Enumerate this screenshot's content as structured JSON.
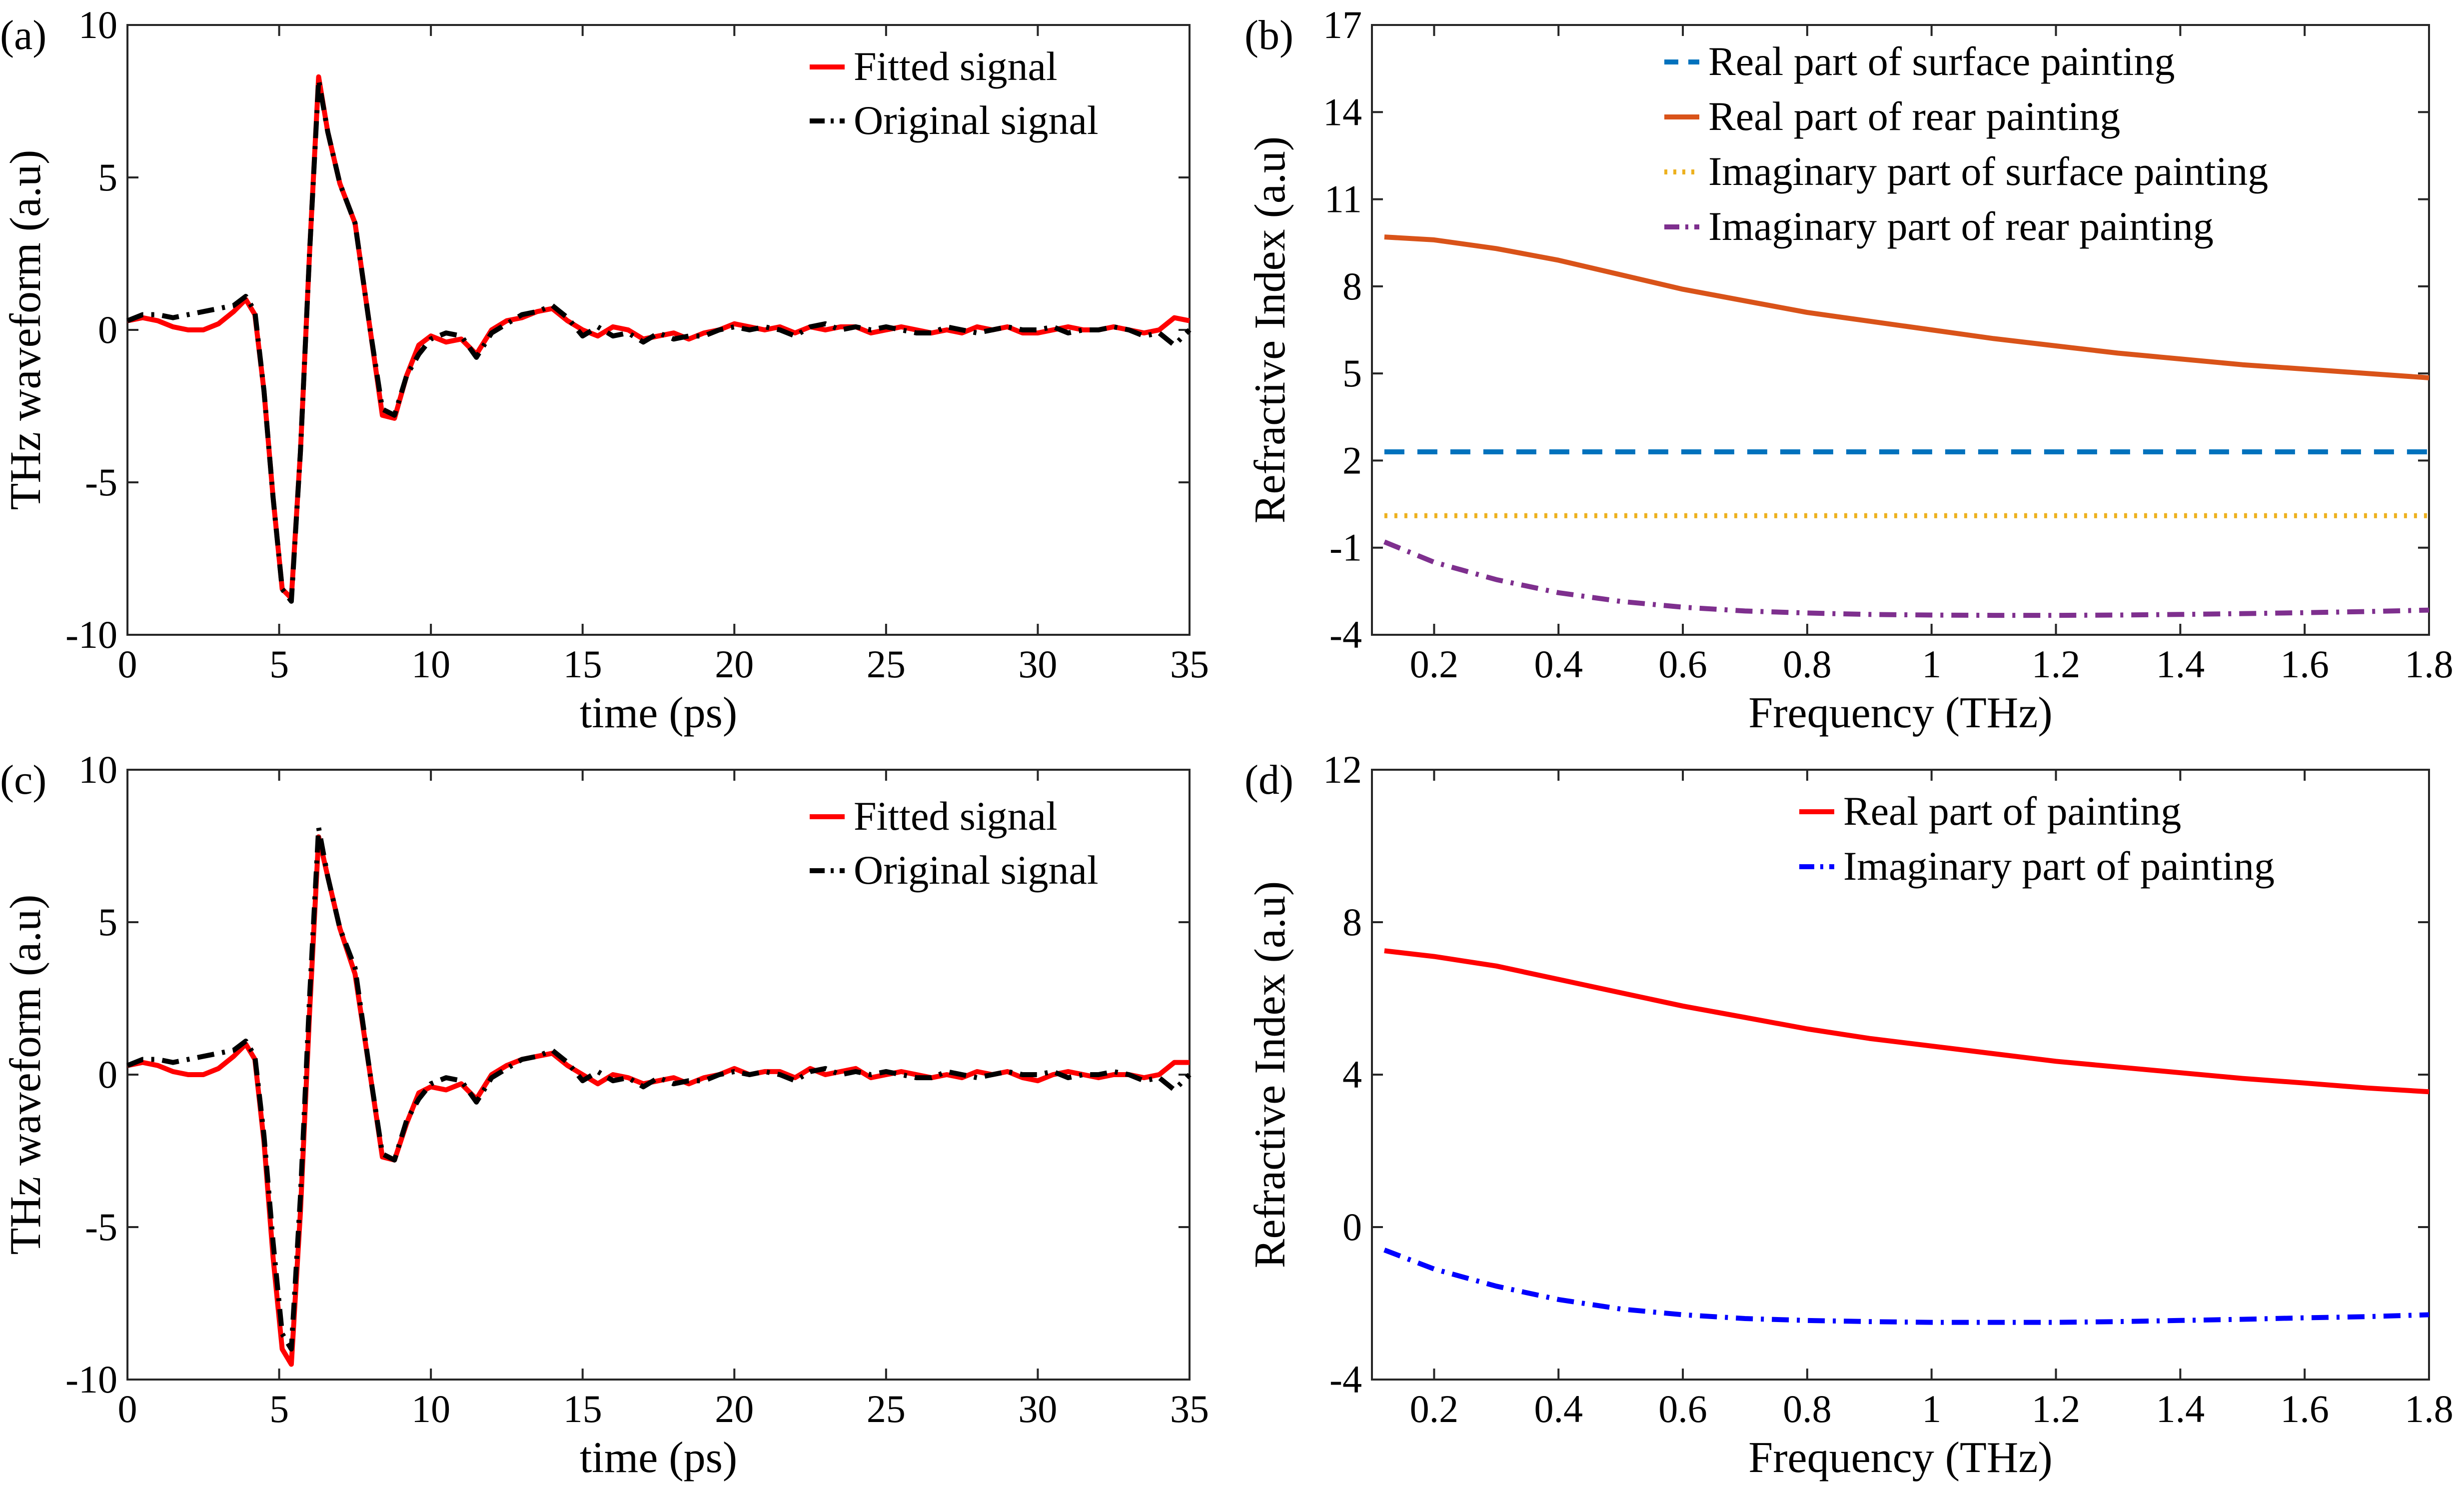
{
  "chart_data": [
    {
      "id": "a",
      "type": "line",
      "panel_label": "(a)",
      "xlabel": "time (ps)",
      "ylabel": "THz waveform (a.u)",
      "xlim": [
        0,
        35
      ],
      "ylim": [
        -10,
        10
      ],
      "xticks": [
        0,
        5,
        10,
        15,
        20,
        25,
        30,
        35
      ],
      "xtick_labels": [
        "0",
        "5",
        "10",
        "15",
        "20",
        "25",
        "30",
        "35"
      ],
      "yticks": [
        -10,
        -5,
        0,
        5,
        10
      ],
      "ytick_labels": [
        "-10",
        "-5",
        "0",
        "5",
        "10"
      ],
      "legend_position": "top-right",
      "x": [
        0,
        0.5,
        1,
        1.5,
        2,
        2.5,
        3,
        3.5,
        3.9,
        4.2,
        4.5,
        4.8,
        5.1,
        5.4,
        5.7,
        6.0,
        6.3,
        6.6,
        7.0,
        7.5,
        8.0,
        8.4,
        8.8,
        9.2,
        9.6,
        10.0,
        10.5,
        11.0,
        11.5,
        12.0,
        12.5,
        13.0,
        13.5,
        14.0,
        14.5,
        15.0,
        15.5,
        16.0,
        16.5,
        17.0,
        17.5,
        18.0,
        18.5,
        19.0,
        19.5,
        20.0,
        20.5,
        21.0,
        21.5,
        22.0,
        22.5,
        23.0,
        23.5,
        24.0,
        24.5,
        25.0,
        25.5,
        26.0,
        26.5,
        27.0,
        27.5,
        28.0,
        28.5,
        29.0,
        29.5,
        30.0,
        30.5,
        31.0,
        31.5,
        32.0,
        32.5,
        33.0,
        33.5,
        34.0,
        34.5,
        35.0
      ],
      "series": [
        {
          "name": "Fitted signal",
          "color": "#ff0000",
          "dash": "solid",
          "values": [
            0.3,
            0.4,
            0.3,
            0.1,
            0.0,
            0.0,
            0.2,
            0.6,
            1.0,
            0.5,
            -2.0,
            -5.5,
            -8.5,
            -8.8,
            -4.0,
            2.5,
            8.3,
            6.5,
            4.8,
            3.5,
            0.0,
            -2.8,
            -2.9,
            -1.5,
            -0.5,
            -0.2,
            -0.4,
            -0.3,
            -0.8,
            0.0,
            0.3,
            0.4,
            0.6,
            0.7,
            0.3,
            0.0,
            -0.2,
            0.1,
            0.0,
            -0.3,
            -0.2,
            -0.1,
            -0.3,
            -0.1,
            0.0,
            0.2,
            0.1,
            0.0,
            0.1,
            -0.1,
            0.1,
            0.0,
            0.1,
            0.1,
            -0.1,
            0.0,
            0.1,
            0.0,
            -0.1,
            0.0,
            -0.1,
            0.1,
            0.0,
            0.1,
            -0.1,
            -0.1,
            0.0,
            0.1,
            0.0,
            0.0,
            0.1,
            0.0,
            -0.1,
            0.0,
            0.4,
            0.3
          ]
        },
        {
          "name": "Original signal",
          "color": "#000000",
          "dash": "dashdot",
          "values": [
            0.3,
            0.5,
            0.5,
            0.4,
            0.5,
            0.6,
            0.7,
            0.8,
            1.1,
            0.6,
            -2.0,
            -5.5,
            -8.5,
            -8.9,
            -4.0,
            2.5,
            8.2,
            6.5,
            4.8,
            3.5,
            0.0,
            -2.6,
            -2.8,
            -1.5,
            -0.8,
            -0.3,
            -0.1,
            -0.2,
            -0.9,
            -0.1,
            0.2,
            0.5,
            0.6,
            0.8,
            0.4,
            -0.2,
            0.1,
            -0.2,
            -0.1,
            -0.4,
            -0.1,
            -0.3,
            -0.2,
            -0.2,
            0.0,
            0.1,
            0.0,
            0.1,
            0.0,
            -0.2,
            0.1,
            0.2,
            0.0,
            0.1,
            0.0,
            0.1,
            0.0,
            -0.1,
            -0.1,
            0.1,
            0.0,
            -0.1,
            0.0,
            0.1,
            0.0,
            0.0,
            0.1,
            -0.1,
            0.0,
            0.0,
            0.1,
            0.0,
            -0.2,
            -0.1,
            -0.5,
            0.0
          ]
        }
      ]
    },
    {
      "id": "b",
      "type": "line",
      "panel_label": "(b)",
      "xlabel": "Frequency (THz)",
      "ylabel": "Refractive Index (a.u)",
      "xlim": [
        0.1,
        1.8
      ],
      "ylim": [
        -4,
        17
      ],
      "xticks": [
        0.2,
        0.4,
        0.6,
        0.8,
        1.0,
        1.2,
        1.4,
        1.6,
        1.8
      ],
      "xtick_labels": [
        "0.2",
        "0.4",
        "0.6",
        "0.8",
        "1",
        "1.2",
        "1.4",
        "1.6",
        "1.8"
      ],
      "yticks": [
        -4,
        -1,
        2,
        5,
        8,
        11,
        14,
        17
      ],
      "ytick_labels": [
        "-4",
        "-1",
        "2",
        "5",
        "8",
        "11",
        "14",
        "17"
      ],
      "legend_position": "top-right",
      "x": [
        0.12,
        0.2,
        0.3,
        0.4,
        0.5,
        0.6,
        0.7,
        0.8,
        0.9,
        1.0,
        1.1,
        1.2,
        1.3,
        1.4,
        1.5,
        1.6,
        1.7,
        1.8
      ],
      "series": [
        {
          "name": "Real part of surface painting",
          "color": "#0072bd",
          "dash": "dashed",
          "values": [
            2.3,
            2.3,
            2.3,
            2.3,
            2.3,
            2.3,
            2.3,
            2.3,
            2.3,
            2.3,
            2.3,
            2.3,
            2.3,
            2.3,
            2.3,
            2.3,
            2.3,
            2.3
          ]
        },
        {
          "name": "Real part of rear painting",
          "color": "#d95319",
          "dash": "solid",
          "values": [
            9.7,
            9.6,
            9.3,
            8.9,
            8.4,
            7.9,
            7.5,
            7.1,
            6.8,
            6.5,
            6.2,
            5.95,
            5.7,
            5.5,
            5.3,
            5.15,
            5.0,
            4.85
          ]
        },
        {
          "name": "Imaginary part of surface painting",
          "color": "#edb120",
          "dash": "dotted",
          "values": [
            0.1,
            0.1,
            0.1,
            0.1,
            0.1,
            0.1,
            0.1,
            0.1,
            0.1,
            0.1,
            0.1,
            0.1,
            0.1,
            0.1,
            0.1,
            0.1,
            0.1,
            0.1
          ]
        },
        {
          "name": "Imaginary part of rear painting",
          "color": "#7e2f8e",
          "dash": "dashdot",
          "values": [
            -0.8,
            -1.5,
            -2.1,
            -2.55,
            -2.85,
            -3.05,
            -3.18,
            -3.25,
            -3.3,
            -3.32,
            -3.33,
            -3.33,
            -3.32,
            -3.3,
            -3.27,
            -3.24,
            -3.2,
            -3.15
          ]
        }
      ]
    },
    {
      "id": "c",
      "type": "line",
      "panel_label": "(c)",
      "xlabel": "time (ps)",
      "ylabel": "THz waveform (a.u)",
      "xlim": [
        0,
        35
      ],
      "ylim": [
        -10,
        10
      ],
      "xticks": [
        0,
        5,
        10,
        15,
        20,
        25,
        30,
        35
      ],
      "xtick_labels": [
        "0",
        "5",
        "10",
        "15",
        "20",
        "25",
        "30",
        "35"
      ],
      "yticks": [
        -10,
        -5,
        0,
        5,
        10
      ],
      "ytick_labels": [
        "-10",
        "-5",
        "0",
        "5",
        "10"
      ],
      "legend_position": "top-right",
      "x": [
        0,
        0.5,
        1,
        1.5,
        2,
        2.5,
        3,
        3.5,
        3.9,
        4.2,
        4.5,
        4.8,
        5.1,
        5.4,
        5.7,
        6.0,
        6.3,
        6.6,
        7.0,
        7.5,
        8.0,
        8.4,
        8.8,
        9.2,
        9.6,
        10.0,
        10.5,
        11.0,
        11.5,
        12.0,
        12.5,
        13.0,
        13.5,
        14.0,
        14.5,
        15.0,
        15.5,
        16.0,
        16.5,
        17.0,
        17.5,
        18.0,
        18.5,
        19.0,
        19.5,
        20.0,
        20.5,
        21.0,
        21.5,
        22.0,
        22.5,
        23.0,
        23.5,
        24.0,
        24.5,
        25.0,
        25.5,
        26.0,
        26.5,
        27.0,
        27.5,
        28.0,
        28.5,
        29.0,
        29.5,
        30.0,
        30.5,
        31.0,
        31.5,
        32.0,
        32.5,
        33.0,
        33.5,
        34.0,
        34.5,
        35.0
      ],
      "series": [
        {
          "name": "Fitted signal",
          "color": "#ff0000",
          "dash": "solid",
          "values": [
            0.3,
            0.4,
            0.3,
            0.1,
            0.0,
            0.0,
            0.2,
            0.6,
            1.0,
            0.5,
            -2.2,
            -6.0,
            -9.0,
            -9.5,
            -4.5,
            2.0,
            7.8,
            6.5,
            4.8,
            3.3,
            0.0,
            -2.7,
            -2.8,
            -1.6,
            -0.6,
            -0.4,
            -0.5,
            -0.3,
            -0.8,
            0.0,
            0.3,
            0.5,
            0.6,
            0.7,
            0.3,
            0.0,
            -0.3,
            0.0,
            -0.1,
            -0.3,
            -0.2,
            -0.1,
            -0.3,
            -0.1,
            0.0,
            0.2,
            0.0,
            0.1,
            0.1,
            -0.1,
            0.2,
            0.0,
            0.1,
            0.2,
            -0.1,
            0.0,
            0.1,
            0.0,
            -0.1,
            0.0,
            -0.1,
            0.1,
            0.0,
            0.1,
            -0.1,
            -0.2,
            0.0,
            0.1,
            0.0,
            -0.1,
            0.0,
            0.0,
            -0.1,
            0.0,
            0.4,
            0.4
          ]
        },
        {
          "name": "Original signal",
          "color": "#000000",
          "dash": "dashdot",
          "values": [
            0.3,
            0.5,
            0.5,
            0.4,
            0.5,
            0.6,
            0.7,
            0.8,
            1.1,
            0.6,
            -2.0,
            -5.5,
            -8.5,
            -9.0,
            -4.0,
            2.5,
            8.1,
            6.5,
            4.8,
            3.5,
            0.0,
            -2.6,
            -2.8,
            -1.5,
            -0.8,
            -0.3,
            -0.1,
            -0.2,
            -0.9,
            -0.1,
            0.2,
            0.5,
            0.6,
            0.8,
            0.4,
            -0.2,
            0.1,
            -0.2,
            -0.1,
            -0.4,
            -0.1,
            -0.3,
            -0.2,
            -0.2,
            0.0,
            0.1,
            0.0,
            0.1,
            0.0,
            -0.2,
            0.1,
            0.2,
            0.0,
            0.1,
            0.0,
            0.1,
            0.0,
            -0.1,
            -0.1,
            0.1,
            0.0,
            -0.1,
            0.0,
            0.1,
            0.0,
            0.0,
            0.1,
            -0.1,
            0.0,
            0.0,
            0.1,
            0.0,
            -0.2,
            -0.1,
            -0.5,
            0.0
          ]
        }
      ]
    },
    {
      "id": "d",
      "type": "line",
      "panel_label": "(d)",
      "xlabel": "Frequency (THz)",
      "ylabel": "Refractive Index (a.u)",
      "xlim": [
        0.1,
        1.8
      ],
      "ylim": [
        -4,
        12
      ],
      "xticks": [
        0.2,
        0.4,
        0.6,
        0.8,
        1.0,
        1.2,
        1.4,
        1.6,
        1.8
      ],
      "xtick_labels": [
        "0.2",
        "0.4",
        "0.6",
        "0.8",
        "1",
        "1.2",
        "1.4",
        "1.6",
        "1.8"
      ],
      "yticks": [
        -4,
        0,
        4,
        8,
        12
      ],
      "ytick_labels": [
        "-4",
        "0",
        "4",
        "8",
        "12"
      ],
      "legend_position": "top-right",
      "x": [
        0.12,
        0.2,
        0.3,
        0.4,
        0.5,
        0.6,
        0.7,
        0.8,
        0.9,
        1.0,
        1.1,
        1.2,
        1.3,
        1.4,
        1.5,
        1.6,
        1.7,
        1.8
      ],
      "series": [
        {
          "name": "Real part of painting",
          "color": "#ff0000",
          "dash": "solid",
          "values": [
            7.25,
            7.1,
            6.85,
            6.5,
            6.15,
            5.8,
            5.5,
            5.2,
            4.95,
            4.75,
            4.55,
            4.35,
            4.2,
            4.05,
            3.9,
            3.78,
            3.65,
            3.55
          ]
        },
        {
          "name": "Imaginary part of painting",
          "color": "#0000ff",
          "dash": "dashdot",
          "values": [
            -0.6,
            -1.1,
            -1.55,
            -1.9,
            -2.15,
            -2.3,
            -2.4,
            -2.45,
            -2.48,
            -2.5,
            -2.5,
            -2.5,
            -2.48,
            -2.45,
            -2.42,
            -2.38,
            -2.35,
            -2.3
          ]
        }
      ]
    }
  ]
}
